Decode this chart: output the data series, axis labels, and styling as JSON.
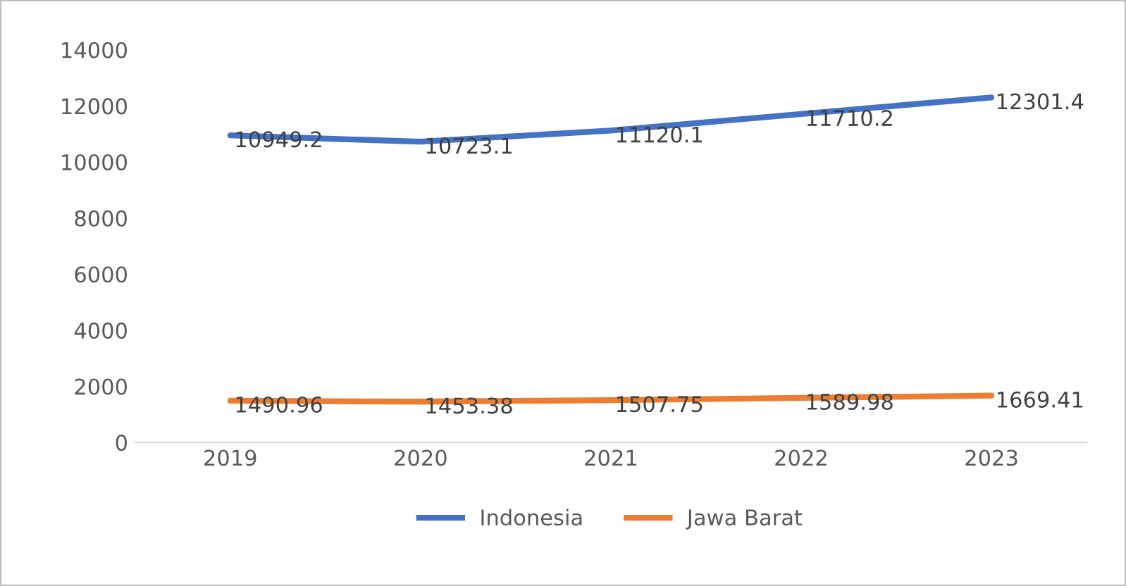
{
  "chart_data": {
    "type": "line",
    "categories": [
      "2019",
      "2020",
      "2021",
      "2022",
      "2023"
    ],
    "series": [
      {
        "name": "Indonesia",
        "color": "#4472c4",
        "values": [
          10949.2,
          10723.1,
          11120.1,
          11710.2,
          12301.4
        ]
      },
      {
        "name": "Jawa Barat",
        "color": "#ed7d31",
        "values": [
          1490.96,
          1453.38,
          1507.75,
          1589.98,
          1669.41
        ]
      }
    ],
    "ylim": [
      0,
      14000
    ],
    "yticks": [
      0,
      2000,
      4000,
      6000,
      8000,
      10000,
      12000,
      14000
    ],
    "data_labels": true,
    "legend": "bottom",
    "grid": false,
    "marker": "none",
    "line_style": "solid"
  }
}
